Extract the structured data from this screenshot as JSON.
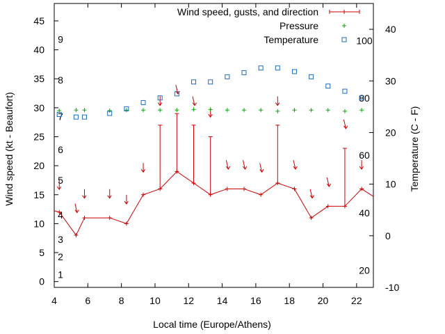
{
  "chart_data": {
    "type": "line",
    "xlabel": "Local time (Europe/Athens)",
    "ylabel": "Wind speed (kt - Beaufort)",
    "y2label": "Temperature (C - F)",
    "xlim": [
      4,
      23
    ],
    "ylim": [
      -1,
      48
    ],
    "y2lim": [
      -10,
      45
    ],
    "x_ticks": [
      4,
      6,
      8,
      10,
      12,
      14,
      16,
      18,
      20,
      22
    ],
    "y_ticks": [
      0,
      5,
      10,
      15,
      20,
      25,
      30,
      35,
      40,
      45
    ],
    "y2_ticks": [
      -10,
      0,
      10,
      20,
      30,
      40
    ],
    "beaufort_labels": [
      {
        "label": "1",
        "kt": 1.2
      },
      {
        "label": "2",
        "kt": 4.3
      },
      {
        "label": "3",
        "kt": 7.3
      },
      {
        "label": "4",
        "kt": 11.5
      },
      {
        "label": "5",
        "kt": 17.5
      },
      {
        "label": "6",
        "kt": 22.8
      },
      {
        "label": "7",
        "kt": 28.5
      },
      {
        "label": "8",
        "kt": 34.8
      },
      {
        "label": "9",
        "kt": 41.8
      }
    ],
    "fahrenheit_labels": [
      {
        "label": "20",
        "c": -6.7
      },
      {
        "label": "40",
        "c": 4.4
      },
      {
        "label": "60",
        "c": 15.6
      },
      {
        "label": "80",
        "c": 26.7
      },
      {
        "label": "100",
        "c": 37.8
      }
    ],
    "legend": [
      "Wind speed, gusts, and direction",
      "Pressure",
      "Temperature"
    ],
    "legend_position": "top-right",
    "colors": {
      "wind": "#cc0000",
      "pressure": "#00aa00",
      "temperature": "#1a6bbf"
    },
    "series": [
      {
        "name": "Wind speed, gusts, and direction",
        "x": [
          4.0,
          4.3,
          5.3,
          5.8,
          7.3,
          8.3,
          9.3,
          10.3,
          11.3,
          12.3,
          13.3,
          14.3,
          15.3,
          16.3,
          17.3,
          18.3,
          19.3,
          20.3,
          21.3,
          22.3,
          23.0
        ],
        "values": [
          12.2,
          12.0,
          8.0,
          11.0,
          11.0,
          10.0,
          15.0,
          16.0,
          19.0,
          17.0,
          15.0,
          16.0,
          16.0,
          15.0,
          17.0,
          16.0,
          11.0,
          13.0,
          13.0,
          16.0,
          14.7
        ],
        "gusts": [
          null,
          null,
          null,
          null,
          null,
          null,
          null,
          27.0,
          29.0,
          27.0,
          25.0,
          null,
          null,
          null,
          27.0,
          null,
          null,
          null,
          23.0,
          null,
          null
        ]
      },
      {
        "name": "Wind direction",
        "x": [
          4.3,
          5.3,
          5.8,
          7.3,
          8.3,
          9.3,
          10.3,
          11.3,
          12.3,
          13.3,
          14.3,
          15.3,
          16.3,
          17.3,
          18.3,
          19.3,
          20.3,
          21.3,
          22.3
        ],
        "values": [
          16.5,
          12.5,
          15.0,
          15.0,
          14.0,
          19.5,
          31.0,
          33.0,
          31.0,
          29.0,
          20.0,
          20.0,
          19.5,
          31.0,
          20.0,
          15.0,
          17.0,
          27.0,
          20.0
        ],
        "direction": [
          "N",
          "NNW",
          "N",
          "N",
          "N",
          "N",
          "N",
          "NNW",
          "NNW",
          "N",
          "NNW",
          "NNW",
          "NNW",
          "N",
          "NNW",
          "NNW",
          "NNW",
          "NNW",
          "N"
        ]
      },
      {
        "name": "Pressure",
        "x": [
          4.3,
          5.3,
          5.8,
          7.3,
          8.3,
          9.3,
          10.3,
          11.3,
          12.3,
          13.3,
          14.3,
          15.3,
          16.3,
          17.3,
          18.3,
          19.3,
          20.3,
          21.3,
          22.3
        ],
        "values": [
          29.5,
          29.6,
          29.6,
          29.5,
          29.6,
          29.6,
          29.6,
          29.6,
          29.7,
          29.7,
          29.6,
          29.6,
          29.6,
          29.4,
          29.6,
          29.6,
          29.6,
          29.4,
          29.6
        ]
      },
      {
        "name": "Temperature",
        "axis": "y2",
        "x": [
          4.3,
          5.3,
          5.8,
          7.3,
          8.3,
          9.3,
          10.3,
          11.3,
          12.3,
          13.3,
          14.3,
          15.3,
          16.3,
          17.3,
          18.3,
          19.3,
          20.3,
          21.3,
          22.3
        ],
        "values": [
          23.5,
          23.0,
          23.0,
          23.7,
          24.6,
          25.8,
          26.7,
          27.5,
          29.8,
          29.8,
          30.8,
          31.6,
          32.5,
          32.5,
          31.8,
          30.8,
          29.0,
          28.0,
          26.7
        ]
      }
    ]
  }
}
